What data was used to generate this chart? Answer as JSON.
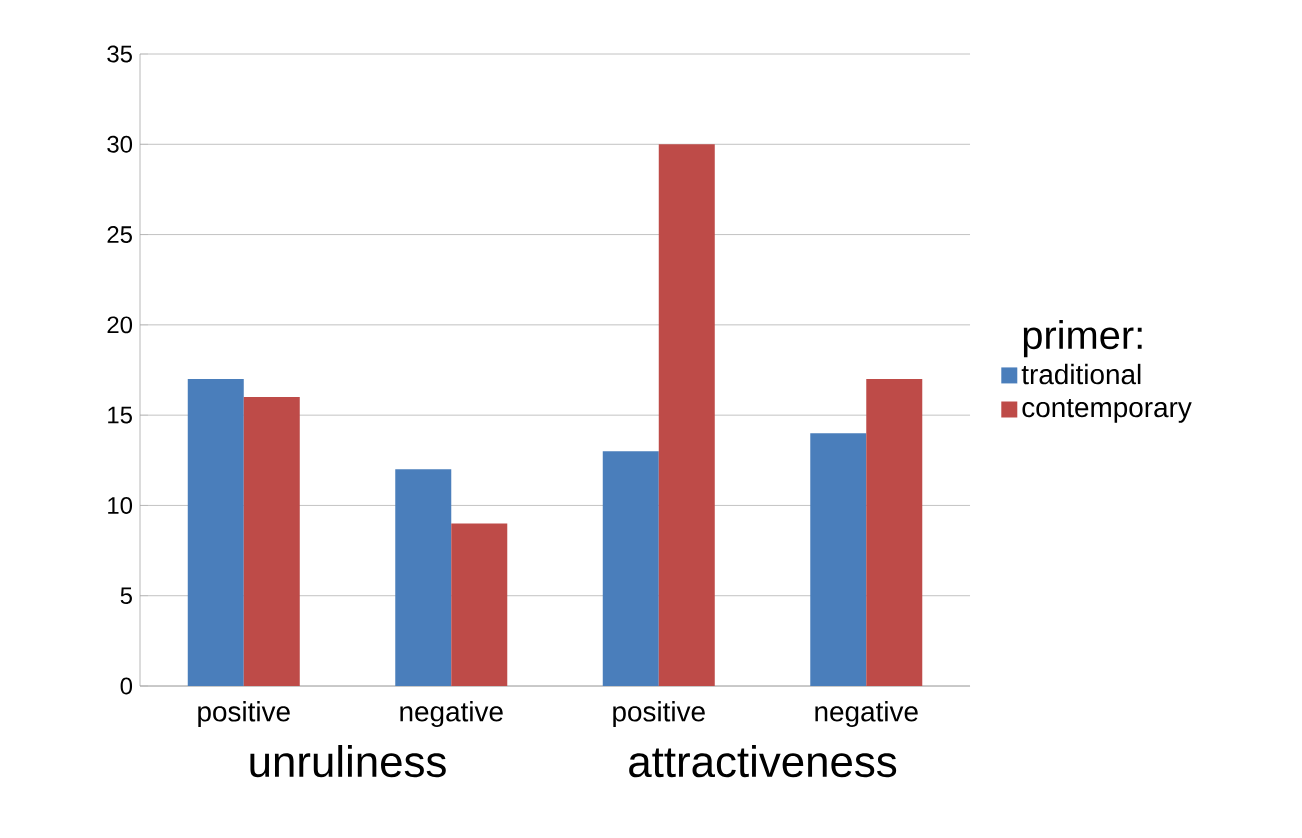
{
  "chart_data": {
    "type": "bar",
    "categories": [
      "positive",
      "negative",
      "positive",
      "negative"
    ],
    "series": [
      {
        "name": "traditional",
        "color": "#4a7ebb",
        "values": [
          17,
          12,
          13,
          14
        ]
      },
      {
        "name": "contemporary",
        "color": "#be4b48",
        "values": [
          16,
          9,
          30,
          17
        ]
      }
    ],
    "ylim": [
      0,
      35
    ],
    "yticks": [
      0,
      5,
      10,
      15,
      20,
      25,
      30,
      35
    ],
    "grid": "y",
    "legend": "right",
    "legend_title": "primer:",
    "annotations": [
      "unruliness",
      "attractiveness"
    ]
  }
}
